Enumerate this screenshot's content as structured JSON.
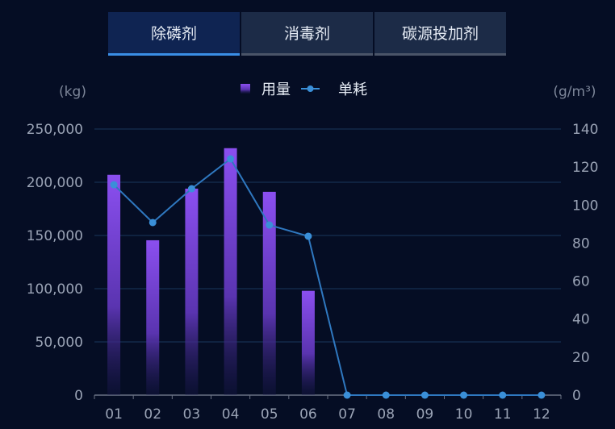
{
  "tabs": [
    {
      "label": "除磷剂",
      "active": true
    },
    {
      "label": "消毒剂",
      "active": false
    },
    {
      "label": "碳源投加剂",
      "active": false
    }
  ],
  "chart_data": {
    "type": "bar+line",
    "categories": [
      "01",
      "02",
      "03",
      "04",
      "05",
      "06",
      "07",
      "08",
      "09",
      "10",
      "11",
      "12"
    ],
    "series": [
      {
        "name": "用量",
        "type": "bar",
        "axis": "left",
        "color": "#8b4ff0",
        "values": [
          207000,
          145500,
          194000,
          232000,
          191000,
          98000,
          0,
          0,
          0,
          0,
          0,
          0
        ]
      },
      {
        "name": "单耗",
        "type": "line",
        "axis": "right",
        "color": "#3a8fd8",
        "values": [
          110.7,
          90.8,
          108.6,
          124.3,
          89.5,
          83.6,
          0,
          0,
          0,
          0,
          0,
          0
        ]
      }
    ],
    "left_axis": {
      "unit": "(kg)",
      "range": [
        0,
        250000
      ],
      "ticks": [
        "0",
        "50,000",
        "100,000",
        "150,000",
        "200,000",
        "250,000"
      ]
    },
    "right_axis": {
      "unit": "(g/m³)",
      "range": [
        0,
        140
      ],
      "ticks": [
        "0",
        "20",
        "40",
        "60",
        "80",
        "100",
        "120",
        "140"
      ]
    },
    "legend_position": "top-center",
    "grid": true
  }
}
